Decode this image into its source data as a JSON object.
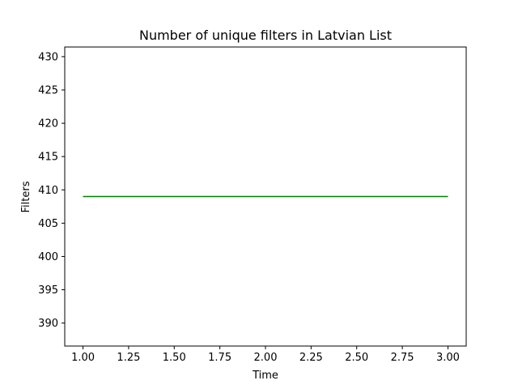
{
  "chart_data": {
    "type": "line",
    "title": "Number of unique filters in Latvian List",
    "xlabel": "Time",
    "ylabel": "Filters",
    "xlim": [
      0.9,
      3.1
    ],
    "ylim": [
      386.55,
      431.45
    ],
    "x_ticks": [
      1.0,
      1.25,
      1.5,
      1.75,
      2.0,
      2.25,
      2.5,
      2.75,
      3.0
    ],
    "x_tick_labels": [
      "1.00",
      "1.25",
      "1.50",
      "1.75",
      "2.00",
      "2.25",
      "2.50",
      "2.75",
      "3.00"
    ],
    "y_ticks": [
      390,
      395,
      400,
      405,
      410,
      415,
      420,
      425,
      430
    ],
    "y_tick_labels": [
      "390",
      "395",
      "400",
      "405",
      "410",
      "415",
      "420",
      "425",
      "430"
    ],
    "grid": false,
    "legend": null,
    "series": [
      {
        "color": "#008000",
        "x": [
          1,
          2,
          3
        ],
        "values": [
          409,
          409,
          409
        ]
      }
    ]
  }
}
